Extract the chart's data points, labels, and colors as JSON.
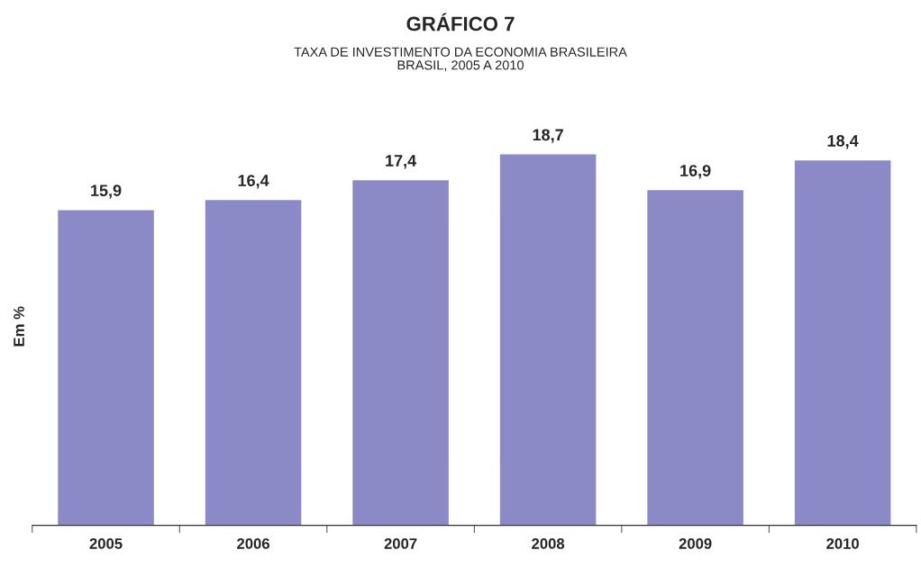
{
  "chart_data": {
    "type": "bar",
    "title": "GRÁFICO 7",
    "subtitle": "TAXA DE INVESTIMENTO DA ECONOMIA BRASILEIRA\nBRASIL, 2005 A 2010",
    "ylabel": "Em %",
    "categories": [
      "2005",
      "2006",
      "2007",
      "2008",
      "2009",
      "2010"
    ],
    "values": [
      15.9,
      16.4,
      17.4,
      18.7,
      16.9,
      18.4
    ],
    "value_labels": [
      "15,9",
      "16,4",
      "17,4",
      "18,7",
      "16,9",
      "18,4"
    ],
    "color": "#8c8ac6",
    "grid": false,
    "legend": false
  }
}
